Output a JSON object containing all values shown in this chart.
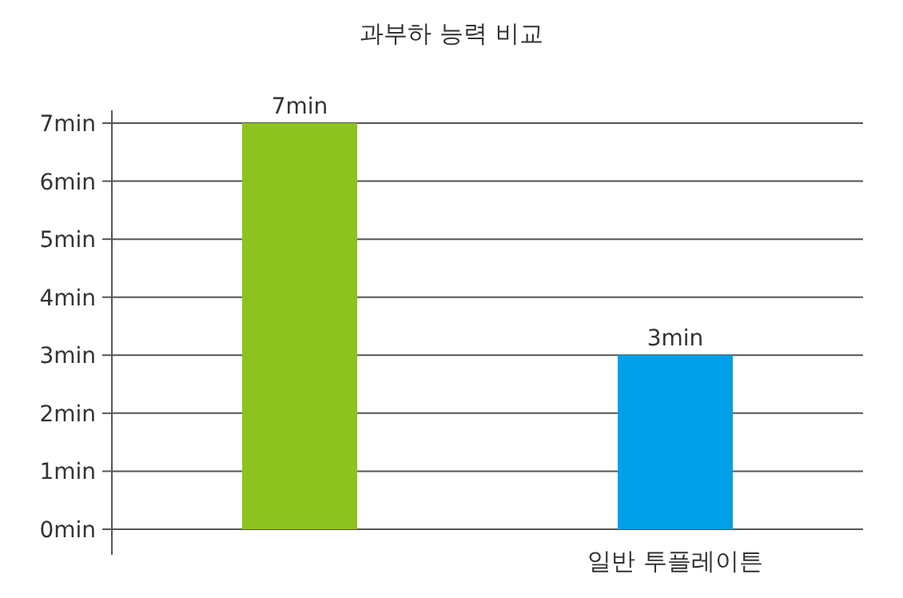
{
  "chart_data": {
    "type": "bar",
    "title": "과부하 능력 비교",
    "categories": [
      null,
      "일반 투플레이튼"
    ],
    "values": [
      7,
      3
    ],
    "colors": [
      "#8dc21f",
      "#00a0e9"
    ],
    "value_labels": [
      "7min",
      "3min"
    ],
    "ylim": [
      0,
      7
    ],
    "yticks": [
      {
        "value": 0,
        "label": "0min"
      },
      {
        "value": 1,
        "label": "1min"
      },
      {
        "value": 2,
        "label": "2min"
      },
      {
        "value": 3,
        "label": "3min"
      },
      {
        "value": 4,
        "label": "4min"
      },
      {
        "value": 5,
        "label": "5min"
      },
      {
        "value": 6,
        "label": "6min"
      },
      {
        "value": 7,
        "label": "7min"
      }
    ],
    "grid": "y"
  }
}
